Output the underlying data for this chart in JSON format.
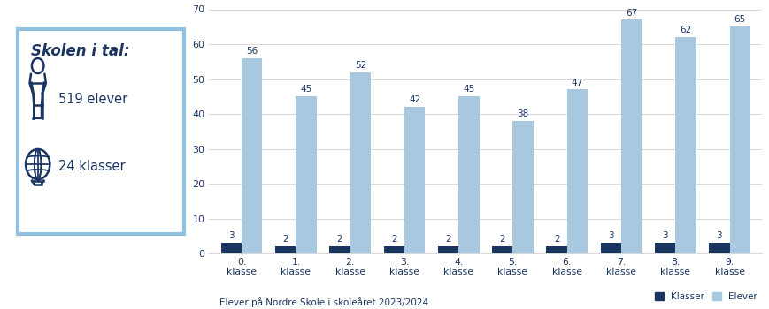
{
  "title_box": "Skolen i tal:",
  "stat1_label": "519 elever",
  "stat2_label": "24 klasser",
  "categories": [
    "0.\nklasse",
    "1.\nklasse",
    "2.\nklasse",
    "3.\nklasse",
    "4.\nklasse",
    "5.\nklasse",
    "6.\nklasse",
    "7.\nklasse",
    "8.\nklasse",
    "9.\nklasse"
  ],
  "klasser": [
    3,
    2,
    2,
    2,
    2,
    2,
    2,
    3,
    3,
    3
  ],
  "elever": [
    56,
    45,
    52,
    42,
    45,
    38,
    47,
    67,
    62,
    65
  ],
  "klasser_color": "#1a3560",
  "elever_color": "#a8c8df",
  "dark_blue": "#1a3560",
  "light_blue_border": "#92c0e0",
  "ylabel_max": 70,
  "yticks": [
    0,
    10,
    20,
    30,
    40,
    50,
    60,
    70
  ],
  "xlabel_note": "Elever på Nordre Skole i skoleåret 2023/2024",
  "legend_klasser": "Klasser",
  "legend_elever": "Elever",
  "bg_color": "#ffffff",
  "text_color": "#1a3560",
  "grid_color": "#d8d8d8",
  "bar_width": 0.38
}
